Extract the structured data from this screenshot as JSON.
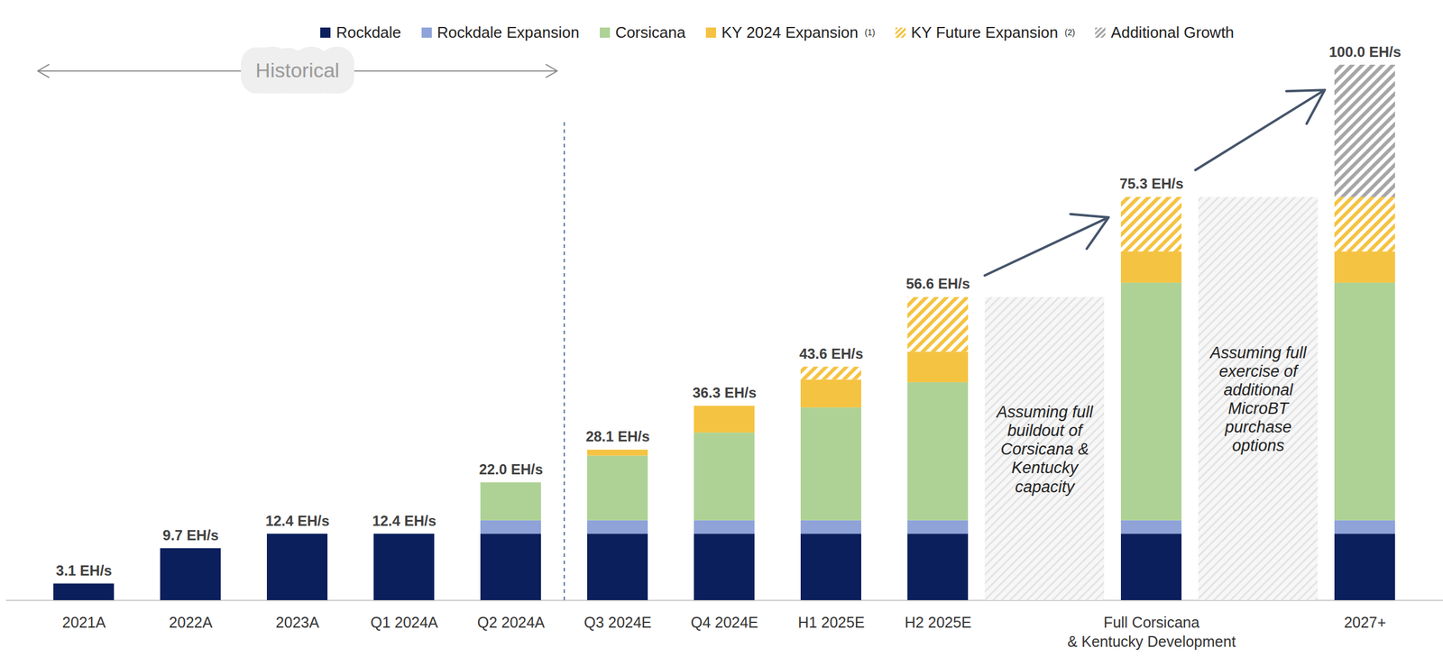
{
  "chart_data": {
    "type": "bar",
    "stacked": true,
    "data_labels": true,
    "tick_labels": "x",
    "grid": false,
    "categories": [
      "2021A",
      "2022A",
      "2023A",
      "Q1 2024A",
      "Q2 2024A",
      "Q3 2024E",
      "Q4 2024E",
      "H1 2025E",
      "H2 2025E",
      null,
      "Full Corsicana\n& Kentucky Development",
      null,
      "2027+"
    ],
    "series": [
      {
        "name": "Rockdale",
        "color": "#0b1f5c",
        "values": [
          3.1,
          9.7,
          12.4,
          12.4,
          12.4,
          12.4,
          12.4,
          12.4,
          12.4,
          null,
          12.4,
          null,
          12.4
        ]
      },
      {
        "name": "Rockdale Expansion",
        "color": "#8fa3d9",
        "values": [
          null,
          null,
          null,
          null,
          2.5,
          2.5,
          2.5,
          2.5,
          2.5,
          null,
          2.5,
          null,
          2.5
        ]
      },
      {
        "name": "Corsicana",
        "color": "#aed295",
        "values": [
          null,
          null,
          null,
          null,
          7.1,
          12.1,
          16.4,
          21.1,
          25.8,
          null,
          44.4,
          null,
          44.4
        ]
      },
      {
        "name": "KY 2024 Expansion",
        "footnote": "(1)",
        "color": "#f5c342",
        "values": [
          null,
          null,
          null,
          null,
          null,
          1.1,
          5.0,
          5.2,
          5.7,
          null,
          5.8,
          null,
          5.8
        ]
      },
      {
        "name": "KY Future Expansion",
        "footnote": "(2)",
        "color": "#f5c342",
        "line_style": "hatched",
        "values": [
          null,
          null,
          null,
          null,
          null,
          null,
          null,
          2.4,
          10.2,
          null,
          10.2,
          null,
          10.2
        ]
      },
      {
        "name": "Additional Growth",
        "color": "#a6a6a6",
        "line_style": "hatched",
        "values": [
          null,
          null,
          null,
          null,
          null,
          null,
          null,
          null,
          null,
          null,
          null,
          null,
          24.7
        ]
      }
    ],
    "totals": [
      3.1,
      9.7,
      12.4,
      12.4,
      22.0,
      28.1,
      36.3,
      43.6,
      56.6,
      null,
      75.3,
      null,
      100.0
    ],
    "total_labels": [
      "3.1 EH/s",
      "9.7 EH/s",
      "12.4 EH/s",
      "12.4 EH/s",
      "22.0 EH/s",
      "28.1 EH/s",
      "36.3 EH/s",
      "43.6 EH/s",
      "56.6 EH/s",
      null,
      "75.3 EH/s",
      null,
      "100.0 EH/s"
    ],
    "annotations": [
      "Assuming full\nbuildout of\nCorsicana &\nKentucky\ncapacity",
      "Assuming full\nexercise of\nadditional\nMicroBT\npurchase\noptions"
    ],
    "historical": {
      "label": "Historical",
      "from": "2021A",
      "to": "Q2 2024A"
    },
    "ylim": [
      0,
      100
    ],
    "yticks": []
  }
}
